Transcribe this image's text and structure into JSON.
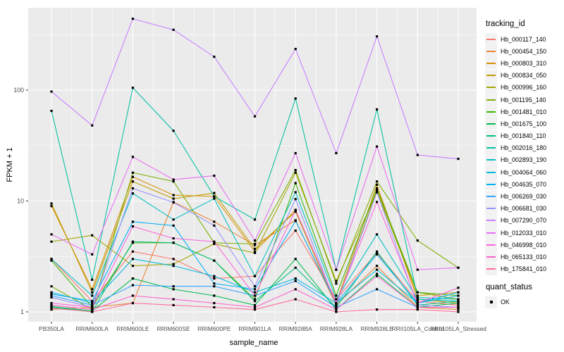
{
  "figure": {
    "background": "#FFFFFF",
    "panel_background": "#EBEBEB",
    "grid_color": "#FFFFFF",
    "tick_label_color": "#4D4D4D",
    "point_color": "#000000"
  },
  "axes": {
    "x": {
      "title": "sample_name"
    },
    "y": {
      "title": "FPKM + 1"
    }
  },
  "legends": [
    {
      "title": "tracking_id"
    },
    {
      "title": "quant_status",
      "entries": [
        {
          "label": "OK",
          "marker": "black-square"
        }
      ]
    }
  ],
  "chart_data": {
    "type": "line",
    "title": "",
    "xlabel": "sample_name",
    "ylabel": "FPKM + 1",
    "yscale": "log10",
    "ylim": [
      0.82,
      550
    ],
    "yticks": [
      1,
      10,
      100
    ],
    "grid": true,
    "legend_position": "right",
    "point_marker": "black-square",
    "quant_status": "OK",
    "categories": [
      "PB350LA",
      "RRIM600LA",
      "RRIM600LE",
      "RRIM600SE",
      "RRIM600PE",
      "RRIM901LA",
      "RRIM928BA",
      "RRIM928LA",
      "RRIM928LE",
      "RRII105LA_Control",
      "RRII105LA_Stressed"
    ],
    "series": [
      {
        "name": "Hb_000117_140",
        "color": "#F8766D",
        "values": [
          3.0,
          1.25,
          3.5,
          3.0,
          2.0,
          2.1,
          5.4,
          1.3,
          3.4,
          1.25,
          1.15
        ]
      },
      {
        "name": "Hb_000454_150",
        "color": "#EA8331",
        "values": [
          1.05,
          1.1,
          1.2,
          9.8,
          6.5,
          4.0,
          6.7,
          1.15,
          2.6,
          1.1,
          1.05
        ]
      },
      {
        "name": "Hb_000803_310",
        "color": "#D89000",
        "values": [
          9.0,
          1.6,
          16.5,
          11.3,
          11.0,
          3.5,
          8.3,
          1.2,
          14.0,
          1.3,
          1.2
        ]
      },
      {
        "name": "Hb_000834_050",
        "color": "#C09B00",
        "values": [
          9.5,
          1.5,
          15.0,
          10.5,
          11.8,
          3.7,
          8.0,
          1.15,
          12.5,
          1.4,
          1.5
        ]
      },
      {
        "name": "Hb_000996_160",
        "color": "#A3A500",
        "values": [
          4.3,
          4.9,
          2.6,
          2.7,
          4.1,
          3.4,
          18.0,
          1.9,
          12.0,
          1.5,
          1.3
        ]
      },
      {
        "name": "Hb_001195_140",
        "color": "#7CAE00",
        "values": [
          1.7,
          1.05,
          18.0,
          15.0,
          4.2,
          4.1,
          19.0,
          1.8,
          15.0,
          4.4,
          2.5
        ]
      },
      {
        "name": "Hb_001481_010",
        "color": "#39B600",
        "values": [
          2.9,
          1.1,
          4.2,
          4.2,
          2.9,
          1.3,
          14.5,
          1.4,
          13.0,
          1.5,
          1.4
        ]
      },
      {
        "name": "Hb_001675_100",
        "color": "#00BB4E",
        "values": [
          1.12,
          1.02,
          2.0,
          1.6,
          1.4,
          1.15,
          3.0,
          1.05,
          2.2,
          1.1,
          1.2
        ]
      },
      {
        "name": "Hb_001840_110",
        "color": "#00BF7D",
        "values": [
          1.1,
          1.0,
          4.3,
          4.2,
          2.9,
          1.25,
          2.5,
          1.1,
          3.5,
          1.15,
          1.25
        ]
      },
      {
        "name": "Hb_002016_180",
        "color": "#00C1A3",
        "values": [
          65,
          1.95,
          105,
          43,
          11.0,
          6.8,
          84,
          2.4,
          67,
          1.35,
          1.3
        ]
      },
      {
        "name": "Hb_002893_190",
        "color": "#00BFC4",
        "values": [
          3.0,
          1.4,
          11.7,
          6.8,
          10.5,
          2.1,
          12.0,
          1.3,
          5.0,
          1.3,
          1.25
        ]
      },
      {
        "name": "Hb_004064_060",
        "color": "#00BAE0",
        "values": [
          1.5,
          1.2,
          3.0,
          2.6,
          2.1,
          1.5,
          2.0,
          1.2,
          2.4,
          1.2,
          1.4
        ]
      },
      {
        "name": "Hb_004635_070",
        "color": "#00B0F6",
        "values": [
          1.45,
          1.25,
          6.5,
          6.0,
          1.8,
          1.6,
          6.6,
          1.2,
          3.3,
          1.2,
          1.5
        ]
      },
      {
        "name": "Hb_006269_030",
        "color": "#35A2FF",
        "values": [
          1.4,
          1.15,
          1.74,
          1.7,
          1.7,
          1.4,
          1.9,
          1.1,
          1.6,
          1.1,
          1.1
        ]
      },
      {
        "name": "Hb_006681_030",
        "color": "#9590FF",
        "values": [
          1.35,
          1.1,
          13.0,
          9.7,
          6.0,
          1.7,
          10.4,
          1.15,
          12.0,
          1.15,
          1.1
        ]
      },
      {
        "name": "Hb_007290_070",
        "color": "#C77CFF",
        "values": [
          97,
          48,
          440,
          350,
          200,
          58,
          235,
          27,
          305,
          26,
          24
        ]
      },
      {
        "name": "Hb_012033_010",
        "color": "#E76BF3",
        "values": [
          5.0,
          3.3,
          25,
          15.6,
          16.9,
          4.4,
          27,
          2.4,
          31,
          2.4,
          2.5
        ]
      },
      {
        "name": "Hb_046998_010",
        "color": "#FA62DB",
        "values": [
          1.2,
          1.1,
          5.9,
          4.6,
          4.3,
          1.4,
          8.3,
          1.2,
          9.8,
          1.2,
          1.65
        ]
      },
      {
        "name": "Hb_065133_010",
        "color": "#FF61CC",
        "values": [
          1.15,
          1.05,
          1.4,
          1.3,
          1.2,
          1.1,
          1.6,
          1.05,
          2.1,
          1.1,
          1.1
        ]
      },
      {
        "name": "Hb_175841_010",
        "color": "#FF6A98",
        "values": [
          1.08,
          1.0,
          1.2,
          1.15,
          1.1,
          1.05,
          1.3,
          1.0,
          1.05,
          1.05,
          1.0
        ]
      }
    ]
  }
}
